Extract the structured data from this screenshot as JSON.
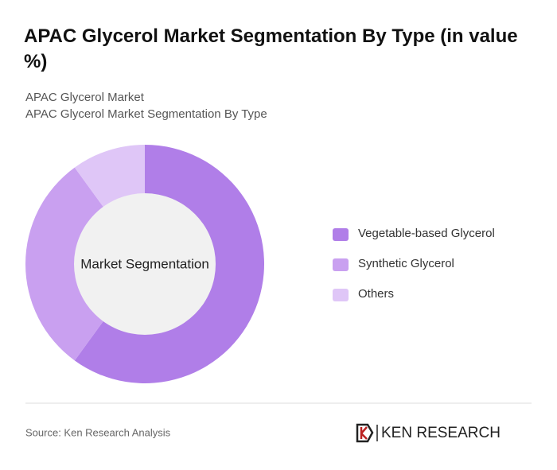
{
  "chart_data": {
    "type": "donut",
    "title": "APAC Glycerol Market Segmentation By Type (in value %)",
    "subtitle_lines": [
      "APAC Glycerol Market",
      "APAC Glycerol Market Segmentation By Type"
    ],
    "center_label": "Market Segmentation",
    "categories": [
      "Vegetable-based Glycerol",
      "Synthetic Glycerol",
      "Others"
    ],
    "values": [
      60,
      30,
      10
    ],
    "colors": [
      "#b07ee8",
      "#c9a0f0",
      "#dfc6f7"
    ],
    "source": "Source: Ken Research Analysis",
    "brand": "KEN RESEARCH"
  }
}
